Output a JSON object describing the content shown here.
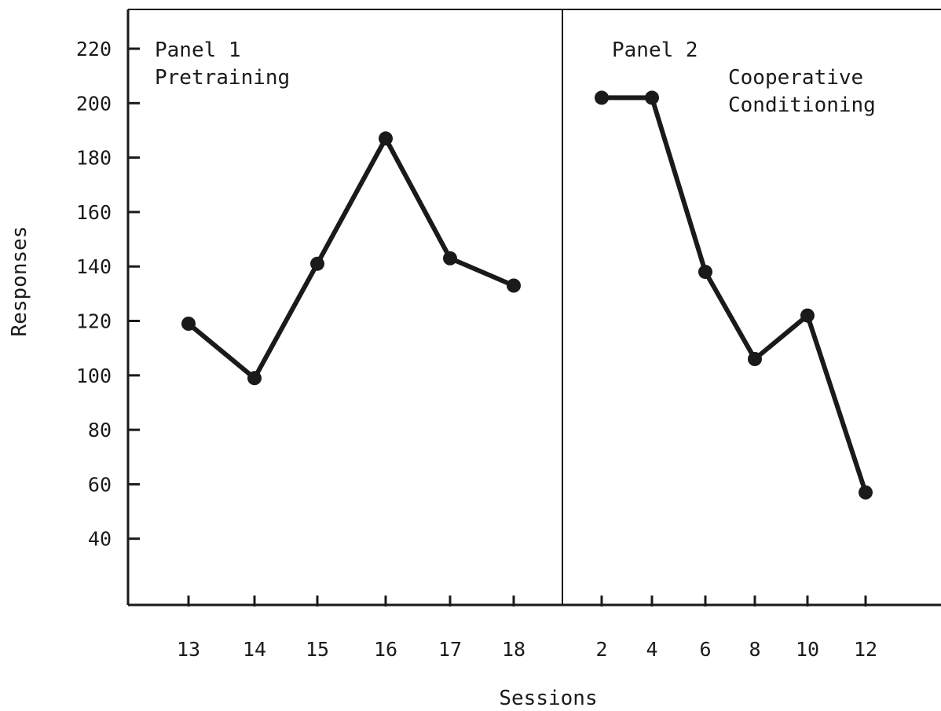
{
  "chart_data": {
    "type": "line",
    "title": "",
    "xlabel": "Sessions",
    "ylabel": "Responses",
    "ylim": [
      20,
      230
    ],
    "y_ticks": [
      40,
      60,
      80,
      100,
      120,
      140,
      160,
      180,
      200,
      220
    ],
    "grid": false,
    "colors": {
      "line": "#1a1a1a",
      "axis": "#1a1a1a",
      "background": "#ffffff"
    },
    "panels": [
      {
        "label": "Panel 1",
        "condition": "Pretraining",
        "x": [
          "13",
          "14",
          "15",
          "16",
          "17",
          "18"
        ],
        "values": [
          119,
          99,
          141,
          187,
          143,
          133
        ]
      },
      {
        "label": "Panel 2",
        "condition_lines": [
          "Cooperative",
          "Conditioning"
        ],
        "x": [
          "2",
          "4",
          "6",
          "8",
          "10",
          "12"
        ],
        "values": [
          202,
          202,
          138,
          106,
          122,
          57
        ]
      }
    ]
  }
}
